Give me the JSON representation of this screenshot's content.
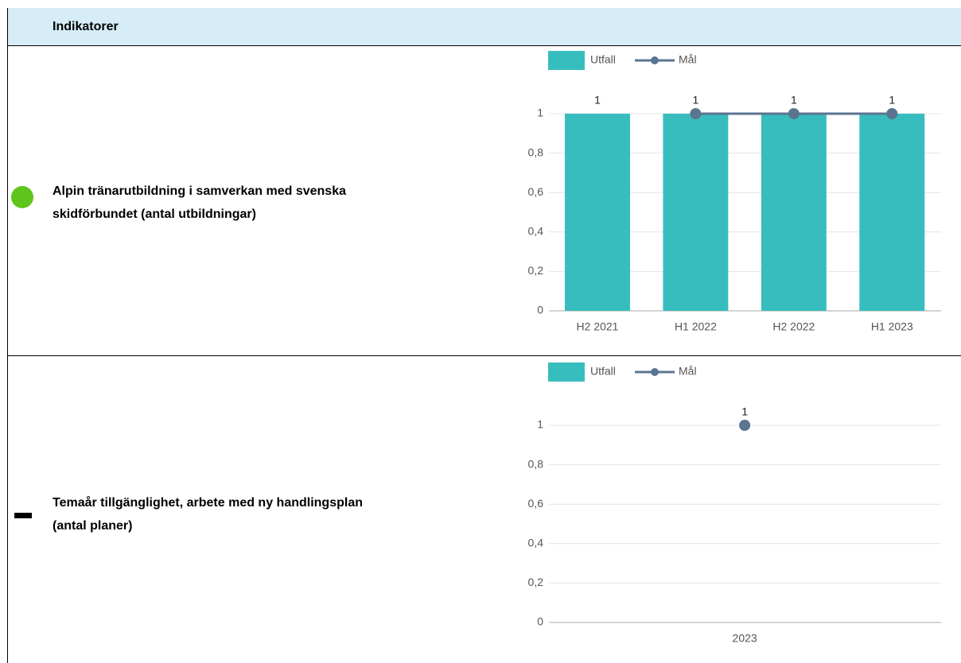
{
  "header": {
    "title": "Indikatorer"
  },
  "rows": [
    {
      "label": [
        "Alpin tränarutbildning i samverkan med svenska",
        "skidförbundet (antal utbildningar)"
      ]
    },
    {
      "label": [
        "Temaår tillgänglighet, arbete med ny handlingsplan",
        "(antal planer)"
      ]
    }
  ],
  "chart_data": [
    {
      "type": "bar_line",
      "categories": [
        "H2 2021",
        "H1 2022",
        "H2 2022",
        "H1 2023"
      ],
      "series": [
        {
          "name": "Utfall",
          "type": "bar",
          "color": "#37bdbd",
          "values": [
            1,
            1,
            1,
            1
          ]
        },
        {
          "name": "Mål",
          "type": "line",
          "color": "#5b7590",
          "values": [
            null,
            1,
            1,
            1
          ]
        }
      ],
      "ylim": [
        0,
        1.2
      ],
      "yticks": [
        0,
        {
          "value": 0.2,
          "label": "0,2"
        },
        {
          "value": 0.4,
          "label": "0,4"
        },
        {
          "value": 0.6,
          "label": "0,6"
        },
        {
          "value": 0.8,
          "label": "0,8"
        },
        1
      ],
      "grid": true
    },
    {
      "type": "bar_line",
      "categories": [
        "2023"
      ],
      "series": [
        {
          "name": "Utfall",
          "type": "bar",
          "color": "#37bdbd",
          "values": [
            null
          ]
        },
        {
          "name": "Mål",
          "type": "line",
          "color": "#5b7590",
          "values": [
            1
          ]
        }
      ],
      "ylim": [
        0,
        1.2
      ],
      "yticks": [
        0,
        {
          "value": 0.2,
          "label": "0,2"
        },
        {
          "value": 0.4,
          "label": "0,4"
        },
        {
          "value": 0.6,
          "label": "0,6"
        },
        {
          "value": 0.8,
          "label": "0,8"
        },
        1
      ],
      "grid": true
    }
  ]
}
